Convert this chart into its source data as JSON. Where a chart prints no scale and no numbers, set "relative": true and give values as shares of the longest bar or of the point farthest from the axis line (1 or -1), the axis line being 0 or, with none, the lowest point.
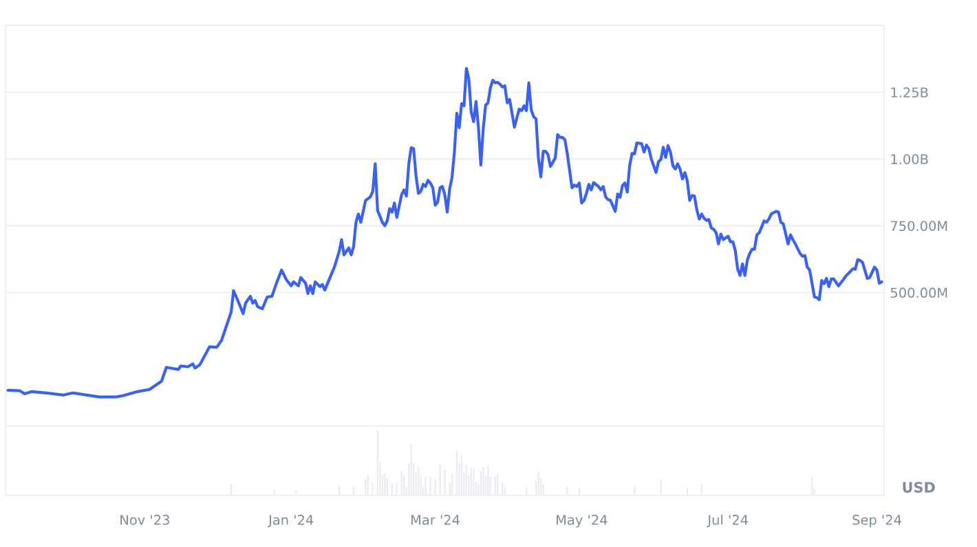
{
  "chart_data": [
    {
      "type": "line",
      "ylim": [
        0,
        1500000000.0
      ],
      "yticks": [
        {
          "value": 500000000.0,
          "label": "500.00M"
        },
        {
          "value": 750000000.0,
          "label": "750.00M"
        },
        {
          "value": 1000000000.0,
          "label": "1.00B"
        },
        {
          "value": 1250000000.0,
          "label": "1.25B"
        }
      ],
      "xlim": [
        "2023-09-04",
        "2024-09-04"
      ],
      "grid": "y",
      "tick_labels": "y",
      "line_style": "solid",
      "x": [
        "2023-09-05",
        "2023-09-10",
        "2023-09-12",
        "2023-09-15",
        "2023-09-21",
        "2023-09-28",
        "2023-10-02",
        "2023-10-13",
        "2023-10-20",
        "2023-10-23",
        "2023-10-29",
        "2023-11-03",
        "2023-11-08",
        "2023-11-10",
        "2023-11-15",
        "2023-11-16",
        "2023-11-19",
        "2023-11-21",
        "2023-11-22",
        "2023-11-24",
        "2023-11-28",
        "2023-12-01",
        "2023-12-03",
        "2023-12-07",
        "2023-12-08",
        "2023-12-10",
        "2023-12-12",
        "2023-12-13",
        "2023-12-15",
        "2023-12-16",
        "2023-12-17",
        "2023-12-18",
        "2023-12-20",
        "2023-12-22",
        "2023-12-24",
        "2023-12-26",
        "2023-12-28",
        "2023-12-30",
        "2024-01-01",
        "2024-01-02",
        "2024-01-04",
        "2024-01-05",
        "2024-01-07",
        "2024-01-08",
        "2024-01-09",
        "2024-01-10",
        "2024-01-11",
        "2024-01-13",
        "2024-01-14",
        "2024-01-15",
        "2024-01-18",
        "2024-01-19",
        "2024-01-21",
        "2024-01-22",
        "2024-01-23",
        "2024-01-25",
        "2024-01-26",
        "2024-01-27",
        "2024-01-28",
        "2024-01-29",
        "2024-01-30",
        "2024-02-01",
        "2024-02-03",
        "2024-02-04",
        "2024-02-05",
        "2024-02-06",
        "2024-02-08",
        "2024-02-09",
        "2024-02-10",
        "2024-02-11",
        "2024-02-12",
        "2024-02-13",
        "2024-02-14",
        "2024-02-16",
        "2024-02-17",
        "2024-02-18",
        "2024-02-19",
        "2024-02-20",
        "2024-02-21",
        "2024-02-22",
        "2024-02-23",
        "2024-02-24",
        "2024-02-25",
        "2024-02-26",
        "2024-02-27",
        "2024-02-28",
        "2024-02-29",
        "2024-03-01",
        "2024-03-02",
        "2024-03-03",
        "2024-03-04",
        "2024-03-05",
        "2024-03-06",
        "2024-03-07",
        "2024-03-08",
        "2024-03-09",
        "2024-03-10",
        "2024-03-11",
        "2024-03-12",
        "2024-03-13",
        "2024-03-14",
        "2024-03-15",
        "2024-03-16",
        "2024-03-17",
        "2024-03-18",
        "2024-03-19",
        "2024-03-20",
        "2024-03-21",
        "2024-03-22",
        "2024-03-23",
        "2024-03-24",
        "2024-03-25",
        "2024-03-26",
        "2024-03-27",
        "2024-03-28",
        "2024-03-29",
        "2024-03-30",
        "2024-03-31",
        "2024-04-01",
        "2024-04-03",
        "2024-04-05",
        "2024-04-06",
        "2024-04-07",
        "2024-04-08",
        "2024-04-09",
        "2024-04-10",
        "2024-04-11",
        "2024-04-12",
        "2024-04-13",
        "2024-04-14",
        "2024-04-15",
        "2024-04-16",
        "2024-04-17",
        "2024-04-18",
        "2024-04-20",
        "2024-04-21",
        "2024-04-22",
        "2024-04-23",
        "2024-04-24",
        "2024-04-25",
        "2024-04-27",
        "2024-04-28",
        "2024-04-29",
        "2024-04-30",
        "2024-05-01",
        "2024-05-02",
        "2024-05-03",
        "2024-05-04",
        "2024-05-05",
        "2024-05-06",
        "2024-05-08",
        "2024-05-09",
        "2024-05-10",
        "2024-05-11",
        "2024-05-12",
        "2024-05-13",
        "2024-05-15",
        "2024-05-16",
        "2024-05-17",
        "2024-05-18",
        "2024-05-19",
        "2024-05-20",
        "2024-05-21",
        "2024-05-22",
        "2024-05-23",
        "2024-05-24",
        "2024-05-26",
        "2024-05-27",
        "2024-05-28",
        "2024-05-29",
        "2024-05-30",
        "2024-06-01",
        "2024-06-02",
        "2024-06-03",
        "2024-06-04",
        "2024-06-05",
        "2024-06-06",
        "2024-06-07",
        "2024-06-08",
        "2024-06-09",
        "2024-06-10",
        "2024-06-11",
        "2024-06-12",
        "2024-06-13",
        "2024-06-14",
        "2024-06-15",
        "2024-06-16",
        "2024-06-17",
        "2024-06-18",
        "2024-06-19",
        "2024-06-20",
        "2024-06-21",
        "2024-06-22",
        "2024-06-23",
        "2024-06-24",
        "2024-06-25",
        "2024-06-26",
        "2024-06-27",
        "2024-06-28",
        "2024-06-29",
        "2024-07-01",
        "2024-07-02",
        "2024-07-03",
        "2024-07-04",
        "2024-07-05",
        "2024-07-06",
        "2024-07-07",
        "2024-07-08",
        "2024-07-09",
        "2024-07-10",
        "2024-07-11",
        "2024-07-12",
        "2024-07-13",
        "2024-07-14",
        "2024-07-16",
        "2024-07-17",
        "2024-07-18",
        "2024-07-19",
        "2024-07-21",
        "2024-07-22",
        "2024-07-23",
        "2024-07-24",
        "2024-07-26",
        "2024-07-27",
        "2024-07-28",
        "2024-07-29",
        "2024-07-31",
        "2024-08-01",
        "2024-08-02",
        "2024-08-03",
        "2024-08-04",
        "2024-08-06",
        "2024-08-07",
        "2024-08-08",
        "2024-08-09",
        "2024-08-10",
        "2024-08-11",
        "2024-08-12",
        "2024-08-13",
        "2024-08-14",
        "2024-08-16",
        "2024-08-18",
        "2024-08-19",
        "2024-08-22",
        "2024-08-23",
        "2024-08-24",
        "2024-08-25",
        "2024-08-26",
        "2024-08-28",
        "2024-08-29",
        "2024-08-31",
        "2024-09-01",
        "2024-09-02",
        "2024-09-03"
      ],
      "series": [
        {
          "color": "#3861fb",
          "values": [
            134000000.0,
            132000000.0,
            121000000.0,
            129000000.0,
            124000000.0,
            116000000.0,
            124000000.0,
            109000000.0,
            109000000.0,
            114000000.0,
            129000000.0,
            137000000.0,
            168000000.0,
            220000000.0,
            212000000.0,
            225000000.0,
            222000000.0,
            233000000.0,
            217000000.0,
            230000000.0,
            297000000.0,
            295000000.0,
            321000000.0,
            427000000.0,
            507000000.0,
            465000000.0,
            421000000.0,
            460000000.0,
            486000000.0,
            460000000.0,
            470000000.0,
            447000000.0,
            439000000.0,
            483000000.0,
            486000000.0,
            538000000.0,
            584000000.0,
            548000000.0,
            525000000.0,
            540000000.0,
            525000000.0,
            556000000.0,
            535000000.0,
            496000000.0,
            525000000.0,
            496000000.0,
            540000000.0,
            522000000.0,
            530000000.0,
            509000000.0,
            574000000.0,
            595000000.0,
            654000000.0,
            698000000.0,
            641000000.0,
            667000000.0,
            641000000.0,
            672000000.0,
            763000000.0,
            794000000.0,
            763000000.0,
            845000000.0,
            858000000.0,
            879000000.0,
            982000000.0,
            807000000.0,
            763000000.0,
            750000000.0,
            768000000.0,
            814000000.0,
            801000000.0,
            835000000.0,
            781000000.0,
            866000000.0,
            884000000.0,
            861000000.0,
            982000000.0,
            1042000000.0,
            1039000000.0,
            938000000.0,
            871000000.0,
            879000000.0,
            905000000.0,
            897000000.0,
            920000000.0,
            910000000.0,
            892000000.0,
            827000000.0,
            838000000.0,
            892000000.0,
            897000000.0,
            866000000.0,
            801000000.0,
            887000000.0,
            931000000.0,
            1026000000.0,
            1171000000.0,
            1117000000.0,
            1207000000.0,
            1199000000.0,
            1339000000.0,
            1300000000.0,
            1176000000.0,
            1140000000.0,
            1215000000.0,
            1119000000.0,
            977000000.0,
            1112000000.0,
            1202000000.0,
            1210000000.0,
            1267000000.0,
            1295000000.0,
            1285000000.0,
            1287000000.0,
            1280000000.0,
            1269000000.0,
            1274000000.0,
            1210000000.0,
            1223000000.0,
            1119000000.0,
            1187000000.0,
            1181000000.0,
            1199000000.0,
            1181000000.0,
            1285000000.0,
            1184000000.0,
            1158000000.0,
            1150000000.0,
            1003000000.0,
            933000000.0,
            1029000000.0,
            1029000000.0,
            1016000000.0,
            972000000.0,
            1003000000.0,
            1091000000.0,
            1081000000.0,
            1081000000.0,
            1073000000.0,
            1021000000.0,
            892000000.0,
            902000000.0,
            897000000.0,
            910000000.0,
            835000000.0,
            845000000.0,
            871000000.0,
            905000000.0,
            884000000.0,
            912000000.0,
            897000000.0,
            884000000.0,
            897000000.0,
            858000000.0,
            848000000.0,
            845000000.0,
            804000000.0,
            869000000.0,
            856000000.0,
            900000000.0,
            910000000.0,
            876000000.0,
            975000000.0,
            1021000000.0,
            1019000000.0,
            1060000000.0,
            1057000000.0,
            1026000000.0,
            1052000000.0,
            1039000000.0,
            1000000000.0,
            949000000.0,
            990000000.0,
            998000000.0,
            1044000000.0,
            1006000000.0,
            1050000000.0,
            1026000000.0,
            975000000.0,
            962000000.0,
            982000000.0,
            962000000.0,
            925000000.0,
            949000000.0,
            918000000.0,
            845000000.0,
            863000000.0,
            861000000.0,
            809000000.0,
            775000000.0,
            794000000.0,
            778000000.0,
            770000000.0,
            773000000.0,
            742000000.0,
            737000000.0,
            724000000.0,
            682000000.0,
            719000000.0,
            698000000.0,
            711000000.0,
            690000000.0,
            690000000.0,
            657000000.0,
            587000000.0,
            564000000.0,
            607000000.0,
            564000000.0,
            620000000.0,
            646000000.0,
            662000000.0,
            662000000.0,
            716000000.0,
            724000000.0,
            768000000.0,
            763000000.0,
            775000000.0,
            794000000.0,
            804000000.0,
            801000000.0,
            763000000.0,
            757000000.0,
            682000000.0,
            716000000.0,
            698000000.0,
            682000000.0,
            646000000.0,
            636000000.0,
            638000000.0,
            595000000.0,
            584000000.0,
            483000000.0,
            481000000.0,
            473000000.0,
            545000000.0,
            533000000.0,
            553000000.0,
            522000000.0,
            551000000.0,
            551000000.0,
            525000000.0,
            548000000.0,
            561000000.0,
            589000000.0,
            587000000.0,
            623000000.0,
            620000000.0,
            613000000.0,
            553000000.0,
            556000000.0,
            595000000.0,
            584000000.0,
            535000000.0,
            540000000.0
          ]
        }
      ]
    },
    {
      "type": "bar",
      "relative": true,
      "ylabel": "USD",
      "tick_labels": "x",
      "grid": false,
      "xlim": [
        "2023-09-04",
        "2024-09-04"
      ],
      "xticks": [
        {
          "value": "2023-11-01",
          "label": "Nov '23"
        },
        {
          "value": "2024-01-01",
          "label": "Jan '24"
        },
        {
          "value": "2024-03-01",
          "label": "Mar '24"
        },
        {
          "value": "2024-05-01",
          "label": "May '24"
        },
        {
          "value": "2024-07-01",
          "label": "Jul '24"
        },
        {
          "value": "2024-09-01",
          "label": "Sep '24"
        }
      ],
      "x": [
        "2023-12-07",
        "2023-12-25",
        "2024-01-03",
        "2024-01-21",
        "2024-01-27",
        "2024-02-01",
        "2024-02-02",
        "2024-02-04",
        "2024-02-06",
        "2024-02-07",
        "2024-02-08",
        "2024-02-09",
        "2024-02-10",
        "2024-02-12",
        "2024-02-14",
        "2024-02-16",
        "2024-02-17",
        "2024-02-18",
        "2024-02-19",
        "2024-02-20",
        "2024-02-21",
        "2024-02-22",
        "2024-02-23",
        "2024-02-24",
        "2024-02-25",
        "2024-02-26",
        "2024-02-28",
        "2024-03-01",
        "2024-03-03",
        "2024-03-05",
        "2024-03-07",
        "2024-03-08",
        "2024-03-10",
        "2024-03-11",
        "2024-03-12",
        "2024-03-13",
        "2024-03-14",
        "2024-03-15",
        "2024-03-16",
        "2024-03-17",
        "2024-03-18",
        "2024-03-19",
        "2024-03-20",
        "2024-03-21",
        "2024-03-22",
        "2024-03-23",
        "2024-03-24",
        "2024-03-26",
        "2024-03-27",
        "2024-03-29",
        "2024-03-30",
        "2024-04-08",
        "2024-04-12",
        "2024-04-13",
        "2024-04-14",
        "2024-04-15",
        "2024-04-25",
        "2024-04-30",
        "2024-05-23",
        "2024-06-03",
        "2024-06-14",
        "2024-06-20",
        "2024-08-05",
        "2024-08-06"
      ],
      "series": [
        {
          "color": "#ececf2",
          "values": [
            0.19,
            0.1,
            0.07,
            0.14,
            0.14,
            0.25,
            0.31,
            0.19,
            1,
            0.51,
            0.31,
            0.35,
            0.27,
            0.19,
            0.19,
            0.37,
            0.31,
            0.13,
            0.5,
            0.8,
            0.5,
            0.35,
            0.44,
            0.31,
            0.13,
            0.29,
            0.29,
            0.25,
            0.48,
            0.4,
            0.2,
            0.33,
            0.7,
            0.5,
            0.62,
            0.35,
            0.48,
            0.31,
            0.44,
            0.42,
            0.21,
            0.17,
            0.37,
            0.44,
            0.3,
            0.45,
            0.29,
            0.29,
            0.33,
            0.19,
            0.14,
            0.12,
            0.23,
            0.37,
            0.27,
            0.17,
            0.14,
            0.12,
            0.14,
            0.25,
            0.12,
            0.18,
            0.29,
            0.11
          ]
        }
      ]
    }
  ]
}
